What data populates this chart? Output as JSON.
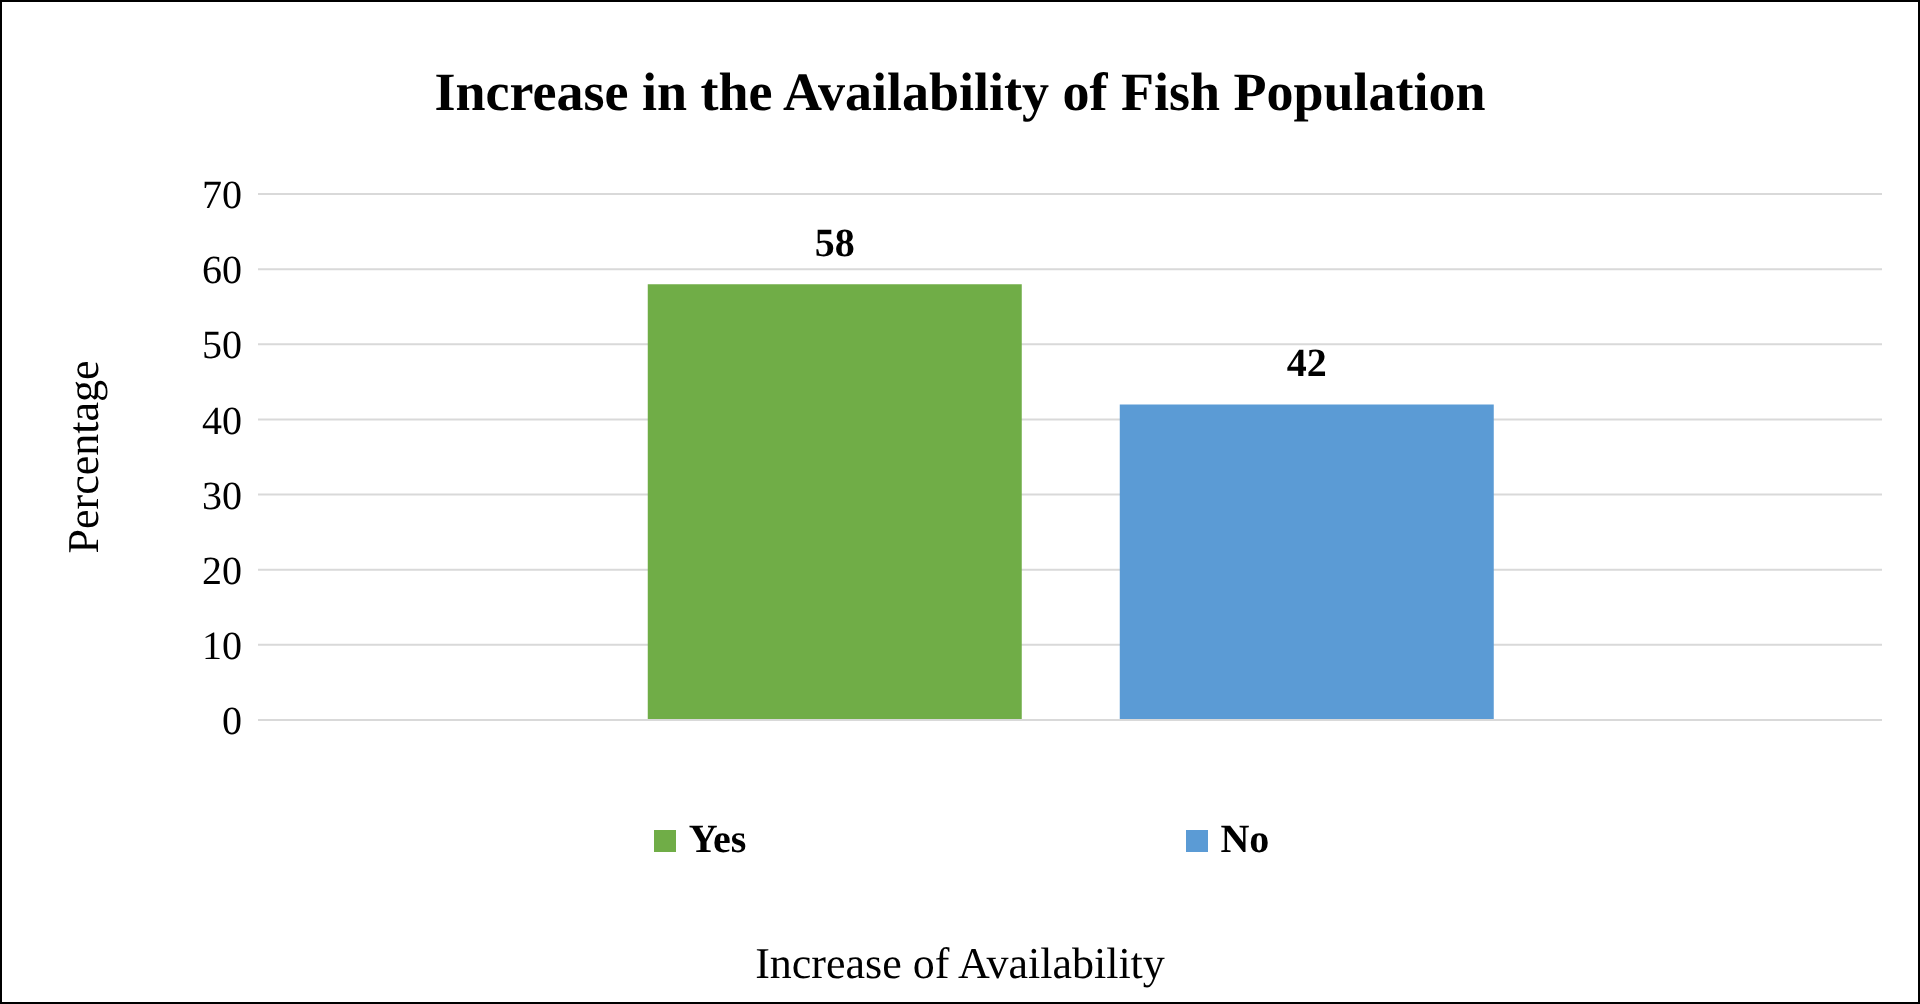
{
  "chart_data": {
    "type": "bar",
    "title": "Increase in the Availability of Fish Population",
    "xlabel": "Increase of Availability",
    "ylabel": "Percentage",
    "categories": [
      null
    ],
    "series": [
      {
        "name": "Yes",
        "color": "#70ad47",
        "values": [
          58
        ]
      },
      {
        "name": "No",
        "color": "#5b9bd5",
        "values": [
          42
        ]
      }
    ],
    "ylim": [
      0,
      70
    ],
    "yticks": [
      0,
      10,
      20,
      30,
      40,
      50,
      60,
      70
    ],
    "grid": "y",
    "legend": "bottom",
    "data_labels": true
  }
}
